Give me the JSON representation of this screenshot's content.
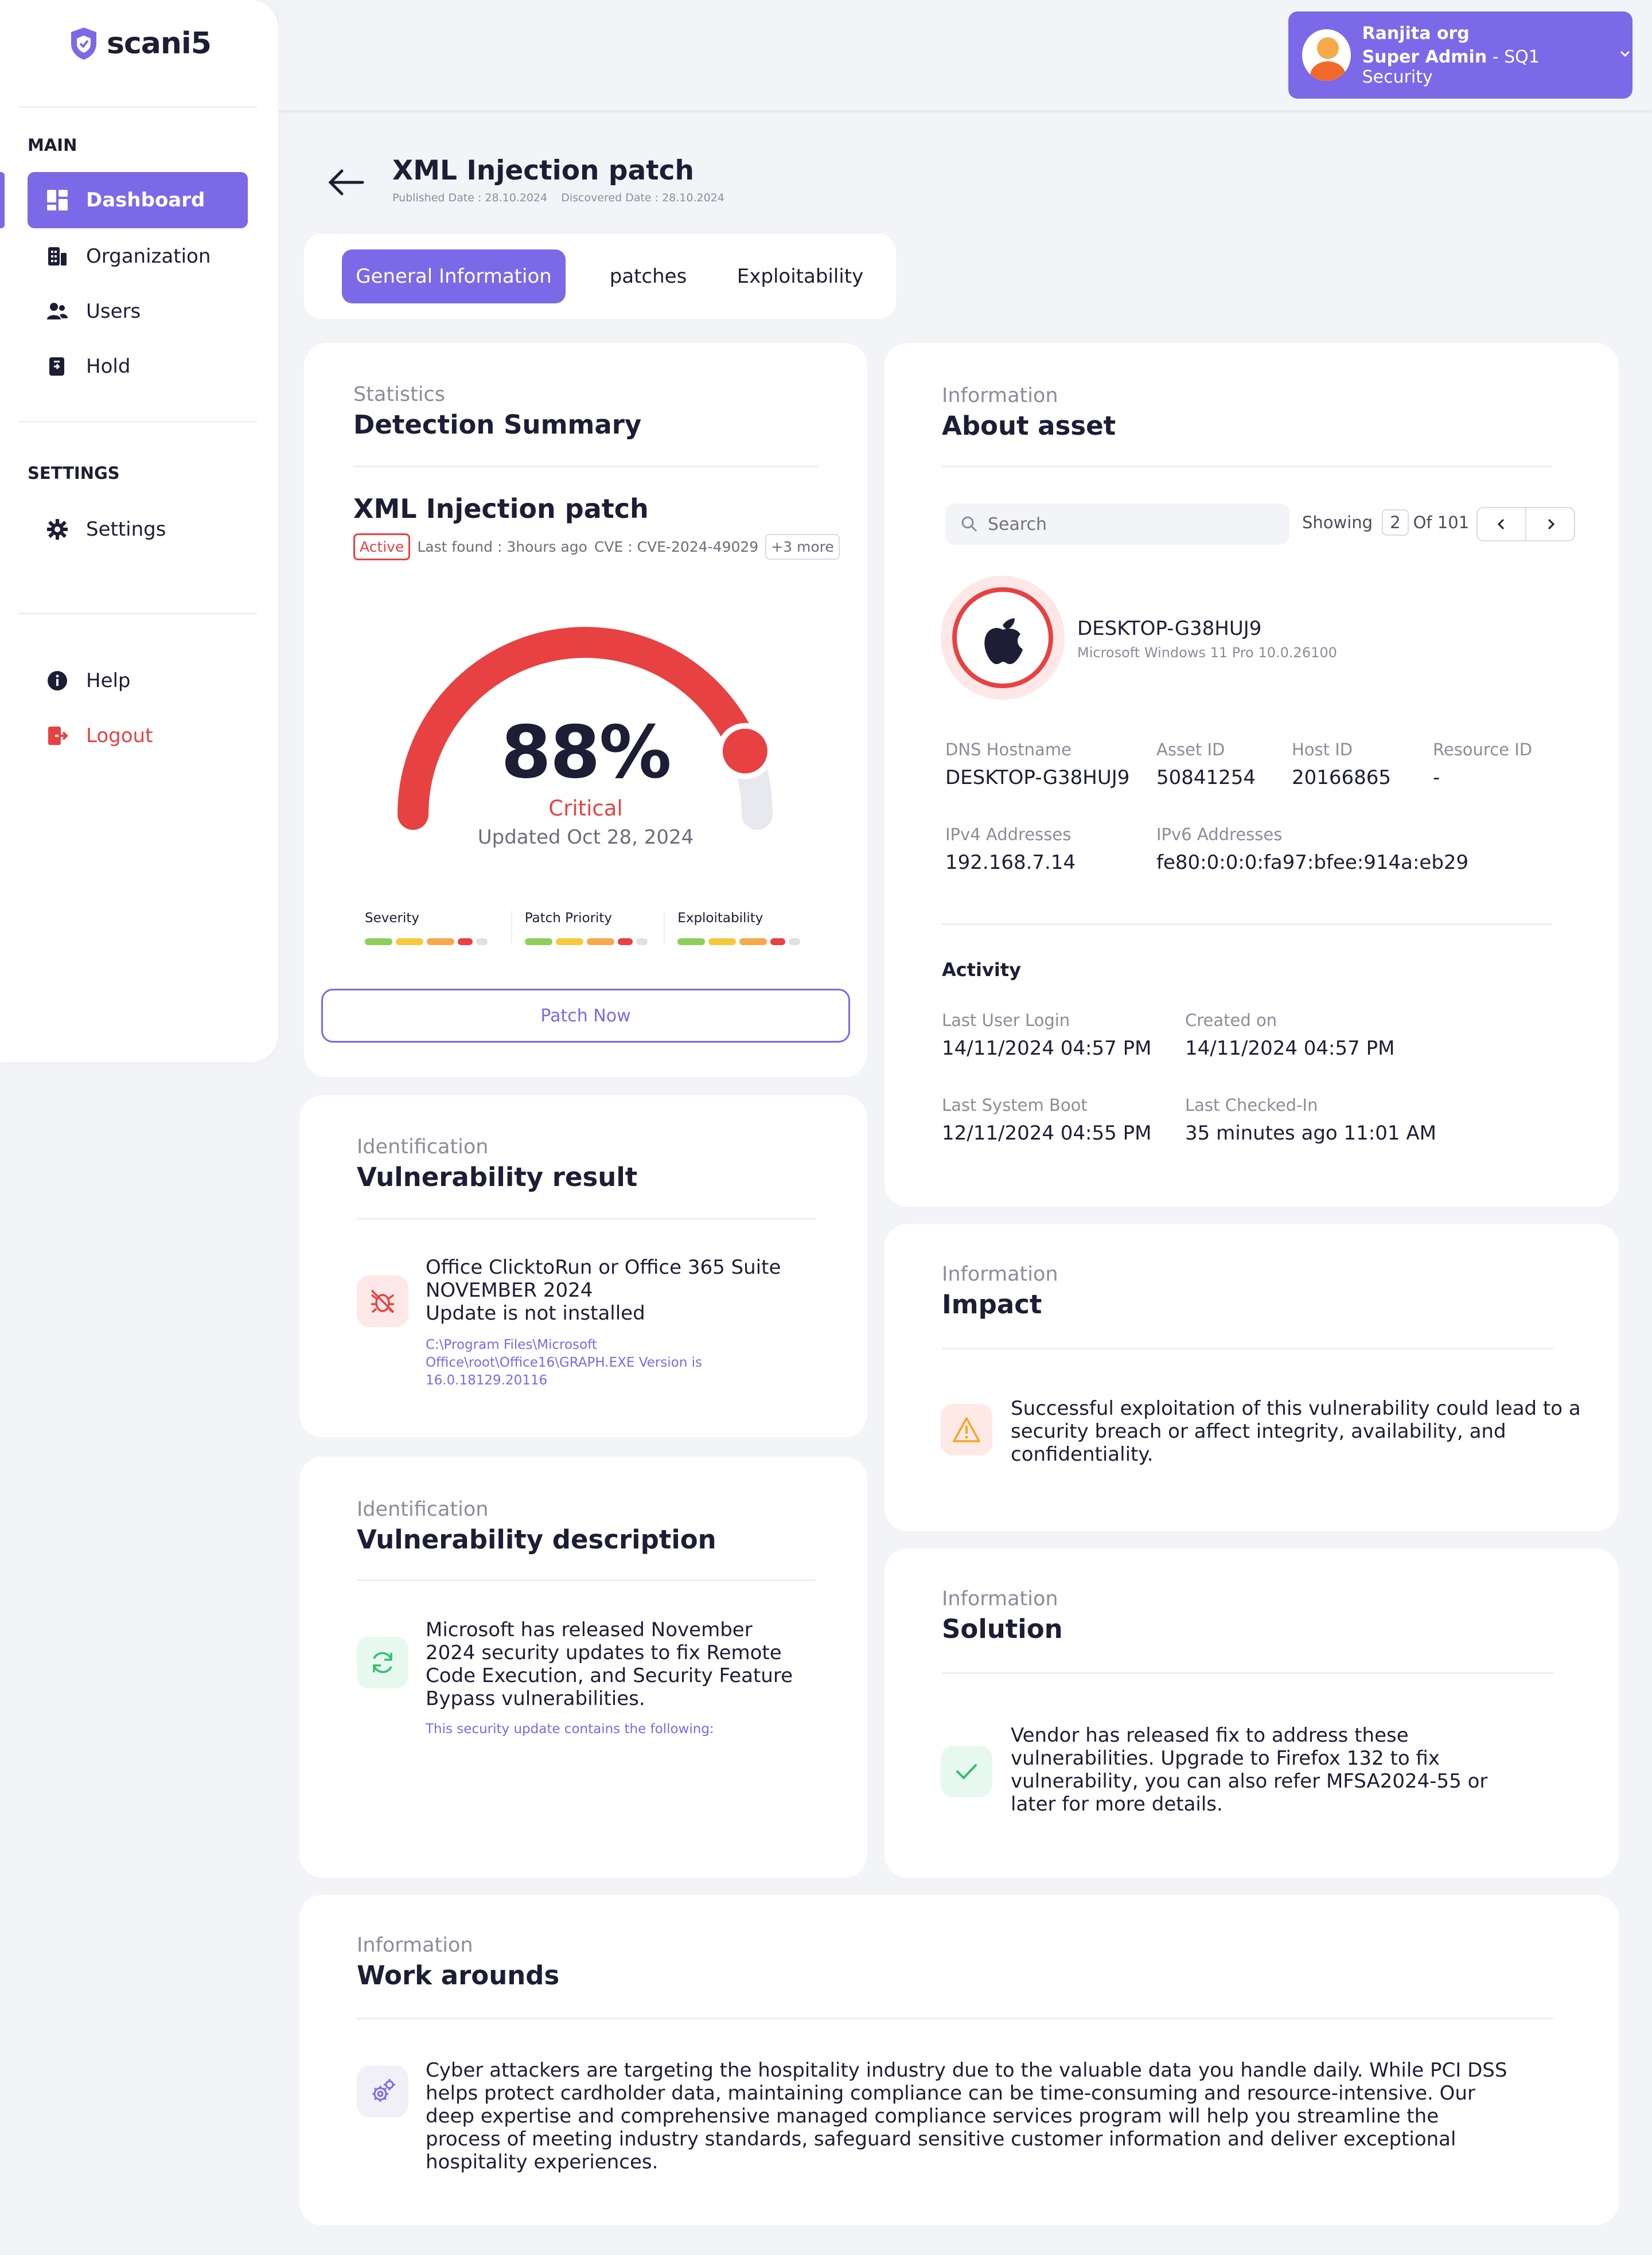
{
  "app": {
    "brand": "scani5"
  },
  "sidebar": {
    "main_label": "MAIN",
    "main_items": [
      {
        "label": "Dashboard",
        "icon": "dashboard-icon",
        "active": true
      },
      {
        "label": "Organization",
        "icon": "building-icon"
      },
      {
        "label": "Users",
        "icon": "users-icon"
      },
      {
        "label": "Hold",
        "icon": "hold-icon"
      }
    ],
    "settings_label": "SETTINGS",
    "settings_item": {
      "label": "Settings",
      "icon": "gear-icon"
    },
    "help": {
      "label": "Help",
      "icon": "info-icon"
    },
    "logout": {
      "label": "Logout",
      "icon": "logout-icon"
    }
  },
  "user": {
    "org": "Ranjita org",
    "role": "Super Admin",
    "separator": " - ",
    "company": "SQ1 Security"
  },
  "header": {
    "title": "XML Injection patch",
    "published": "Published Date : 28.10.2024",
    "discovered": "Discovered Date : 28.10.2024"
  },
  "tabs": [
    "General Information",
    "patches",
    "Exploitability"
  ],
  "detection": {
    "eyebrow": "Statistics",
    "title": "Detection Summary",
    "patch_name": "XML Injection patch",
    "status": "Active",
    "last_found": "Last found : 3hours ago",
    "cve": "CVE : CVE-2024-49029",
    "more": "+3 more",
    "score_text": "88%",
    "score_value": 88,
    "severity_label": "Critical",
    "updated": "Updated Oct 28, 2024",
    "metrics": [
      {
        "label": "Severity",
        "level": 4
      },
      {
        "label": "Patch Priority",
        "level": 4
      },
      {
        "label": "Exploitability",
        "level": 4
      }
    ],
    "patch_button": "Patch Now"
  },
  "asset": {
    "eyebrow": "Information",
    "title": "About asset",
    "search_placeholder": "Search",
    "showing": "Showing",
    "page": "2",
    "of": "Of 101",
    "name": "DESKTOP-G38HUJ9",
    "os": "Microsoft Windows 11 Pro 10.0.26100",
    "fields": [
      {
        "label": "DNS Hostname",
        "value": "DESKTOP-G38HUJ9"
      },
      {
        "label": "Asset ID",
        "value": "50841254"
      },
      {
        "label": "Host ID",
        "value": "20166865"
      },
      {
        "label": "Resource ID",
        "value": "-"
      }
    ],
    "ip": [
      {
        "label": "IPv4 Addresses",
        "value": "192.168.7.14"
      },
      {
        "label": "IPv6 Addresses",
        "value": "fe80:0:0:0:fa97:bfee:914a:eb29"
      }
    ],
    "activity_title": "Activity",
    "activity": [
      {
        "label": "Last User Login",
        "value": "14/11/2024 04:57 PM"
      },
      {
        "label": "Created on",
        "value": "14/11/2024 04:57 PM"
      },
      {
        "label": "Last System Boot",
        "value": "12/11/2024 04:55 PM"
      },
      {
        "label": "Last Checked-In",
        "value": "35 minutes ago 11:01 AM"
      }
    ]
  },
  "vuln_result": {
    "eyebrow": "Identification",
    "title": "Vulnerability result",
    "line1": "Office ClicktoRun or Office 365 Suite",
    "line2": "NOVEMBER 2024",
    "line3": "Update is not installed",
    "path": "C:\\Program Files\\Microsoft Office\\root\\Office16\\GRAPH.EXE Version is 16.0.18129.20116"
  },
  "impact": {
    "eyebrow": "Information",
    "title": "Impact",
    "text": "Successful exploitation of this vulnerability could lead to a security breach or affect integrity, availability, and confidentiality."
  },
  "vuln_desc": {
    "eyebrow": "Identification",
    "title": "Vulnerability description",
    "text": "Microsoft has released November 2024 security updates to fix Remote Code Execution, and Security Feature Bypass vulnerabilities.",
    "sub": "This security update contains the following:"
  },
  "solution": {
    "eyebrow": "Information",
    "title": "Solution",
    "text": "Vendor has released fix to address these vulnerabilities. Upgrade to Firefox 132 to fix vulnerability, you can also refer MFSA2024-55 or later for more details."
  },
  "workarounds": {
    "eyebrow": "Information",
    "title": "Work arounds",
    "text": "Cyber attackers are targeting the hospitality industry due to the valuable data you handle daily. While PCI DSS helps protect cardholder data, maintaining compliance can be time-consuming and resource-intensive. Our deep expertise and comprehensive managed compliance services program will help you streamline the process of meeting industry standards, safeguard sensitive customer information and deliver exceptional hospitality experiences."
  },
  "colors": {
    "accent": "#7b69e8",
    "critical": "#e84142",
    "green": "#8fce5a",
    "yellow": "#f5c93b",
    "orange": "#f6a94a",
    "red": "#e84142"
  }
}
